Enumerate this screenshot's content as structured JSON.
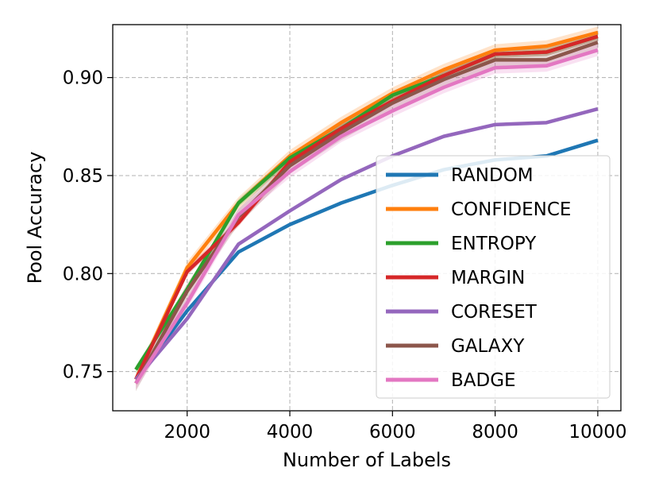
{
  "chart_data": {
    "type": "line",
    "title": "",
    "xlabel": "Number of Labels",
    "ylabel": "Pool Accuracy",
    "xlim": [
      550,
      10450
    ],
    "ylim": [
      0.73,
      0.927
    ],
    "xticks": [
      2000,
      4000,
      6000,
      8000,
      10000
    ],
    "xtick_labels": [
      "2000",
      "4000",
      "6000",
      "8000",
      "10000"
    ],
    "yticks": [
      0.75,
      0.8,
      0.85,
      0.9
    ],
    "ytick_labels": [
      "0.75",
      "0.80",
      "0.85",
      "0.90"
    ],
    "grid": true,
    "legend_position": "lower-right",
    "x": [
      1000,
      2000,
      3000,
      4000,
      5000,
      6000,
      7000,
      8000,
      9000,
      10000
    ],
    "series": [
      {
        "name": "RANDOM",
        "color": "#1f77b4",
        "values": [
          0.746,
          0.781,
          0.811,
          0.825,
          0.836,
          0.845,
          0.853,
          0.858,
          0.86,
          0.868
        ]
      },
      {
        "name": "CONFIDENCE",
        "color": "#ff7f0e",
        "values": [
          0.746,
          0.803,
          0.836,
          0.86,
          0.877,
          0.892,
          0.904,
          0.914,
          0.916,
          0.923
        ],
        "band": 0.003
      },
      {
        "name": "ENTROPY",
        "color": "#2ca02c",
        "values": [
          0.751,
          0.792,
          0.836,
          0.859,
          0.874,
          0.891,
          0.901,
          0.912,
          0.913,
          0.921
        ],
        "band": 0.002
      },
      {
        "name": "MARGIN",
        "color": "#d62728",
        "values": [
          0.746,
          0.801,
          0.826,
          0.857,
          0.874,
          0.888,
          0.901,
          0.912,
          0.913,
          0.921
        ],
        "band": 0.002
      },
      {
        "name": "CORESET",
        "color": "#9467bd",
        "values": [
          0.746,
          0.777,
          0.815,
          0.832,
          0.848,
          0.86,
          0.87,
          0.876,
          0.877,
          0.884
        ]
      },
      {
        "name": "GALAXY",
        "color": "#8c564b",
        "values": [
          0.744,
          0.791,
          0.829,
          0.855,
          0.872,
          0.887,
          0.899,
          0.909,
          0.909,
          0.918
        ],
        "band": 0.004
      },
      {
        "name": "BADGE",
        "color": "#e377c2",
        "values": [
          0.744,
          0.785,
          0.83,
          0.852,
          0.87,
          0.883,
          0.895,
          0.905,
          0.906,
          0.914
        ],
        "band": 0.003
      }
    ]
  }
}
